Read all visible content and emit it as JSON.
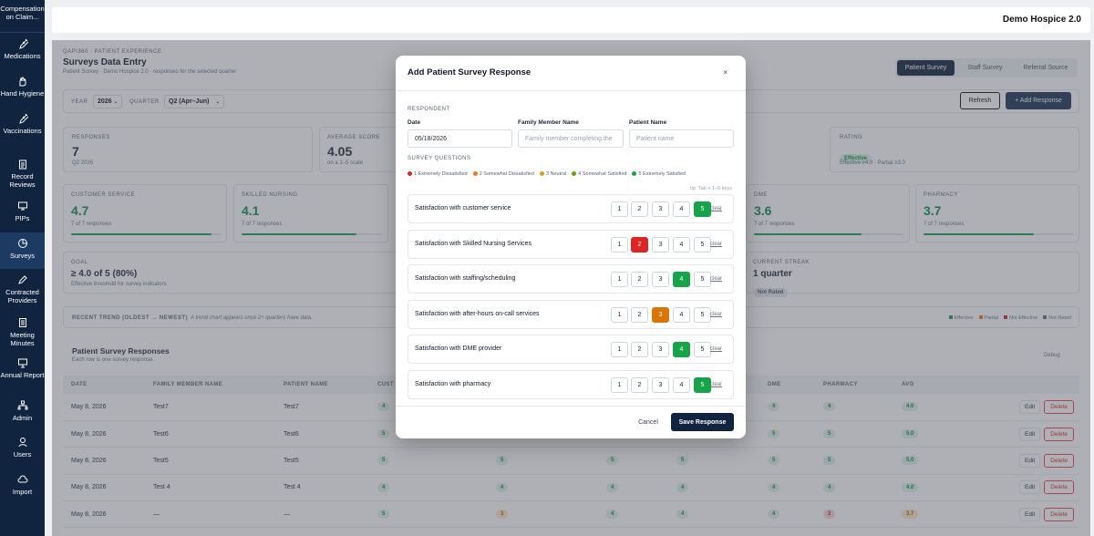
{
  "sidebar": {
    "top_label": "Compensation on Claim...",
    "items": [
      {
        "label": "Medications",
        "icon": "syringe-icon"
      },
      {
        "label": "Hand Hygiene",
        "icon": "hand-icon"
      },
      {
        "label": "Vaccinations",
        "icon": "syringe-icon"
      },
      {
        "label": "Record Reviews",
        "icon": "clipboard-icon"
      },
      {
        "label": "PIPs",
        "icon": "monitor-icon"
      },
      {
        "label": "Surveys",
        "icon": "pie-icon"
      },
      {
        "label": "Contracted Providers",
        "icon": "pen-icon"
      },
      {
        "label": "Meeting Minutes",
        "icon": "notes-icon"
      },
      {
        "label": "Annual Report",
        "icon": "presentation-icon"
      },
      {
        "label": "Admin",
        "icon": "org-icon"
      },
      {
        "label": "Users",
        "icon": "user-icon"
      },
      {
        "label": "Import",
        "icon": "cloud-icon"
      }
    ]
  },
  "header": {
    "org": "Demo Hospice 2.0"
  },
  "page": {
    "eyebrow": "QAPI360 · PATIENT EXPERIENCE",
    "title": "Surveys Data Entry",
    "subtitle": "Patient Survey · Demo Hospice 2.0 · responses for the selected quarter",
    "tabs": [
      "Patient Survey",
      "Staff Survey",
      "Referral Source"
    ],
    "year_label": "YEAR",
    "year_value": "2026",
    "quarter_label": "QUARTER",
    "quarter_value": "Q2 (Apr–Jun)",
    "refresh": "Refresh",
    "add_response": "+ Add Response"
  },
  "stats": {
    "responses": {
      "label": "RESPONSES",
      "value": "7",
      "sub": "Q2 2026"
    },
    "average": {
      "label": "AVERAGE SCORE",
      "value": "4.05",
      "sub": "on a 1–5 scale"
    },
    "rating": {
      "label": "RATING",
      "badge": "Effective",
      "sub": "Effective ≥4.0 · Partial ≥3.0"
    }
  },
  "categories": [
    {
      "label": "CUSTOMER SERVICE",
      "value": "4.7",
      "sub": "7 of 7 responses",
      "fill": 0.94
    },
    {
      "label": "SKILLED NURSING",
      "value": "4.1",
      "sub": "7 of 7 responses",
      "fill": 0.82
    },
    {
      "label": "DME",
      "value": "3.6",
      "sub": "7 of 7 responses",
      "fill": 0.72
    },
    {
      "label": "PHARMACY",
      "value": "3.7",
      "sub": "7 of 7 responses",
      "fill": 0.74
    }
  ],
  "goal": {
    "label": "GOAL",
    "value": "≥ 4.0 of 5 (80%)",
    "sub": "Effective threshold for survey indicators"
  },
  "streak": {
    "label": "CURRENT STREAK",
    "value": "1 quarter",
    "badge": "Not Rated"
  },
  "trend": {
    "label": "RECENT TREND (OLDEST → NEWEST)",
    "note": "A trend chart appears once 2+ quarters have data.",
    "legend": [
      {
        "label": "Effective",
        "color": "#16a34a"
      },
      {
        "label": "Partial",
        "color": "#ea7a1a"
      },
      {
        "label": "Not Effective",
        "color": "#dc2626"
      },
      {
        "label": "Not Rated",
        "color": "#64748b"
      }
    ]
  },
  "responses_section": {
    "title": "Patient Survey Responses",
    "sub": "Each row is one survey response.",
    "debug": "Debug",
    "columns": [
      "DATE",
      "FAMILY MEMBER NAME",
      "PATIENT NAME",
      "CUST",
      "",
      "",
      "",
      "DME",
      "PHARMACY",
      "AVG",
      ""
    ],
    "rows": [
      {
        "date": "May 8, 2026",
        "family": "Test7",
        "patient": "Test7",
        "c1": "4",
        "c2": "",
        "c3": "",
        "c4": "",
        "dme": "4",
        "pharm": "4",
        "avg": "4.0"
      },
      {
        "date": "May 8, 2026",
        "family": "Test6",
        "patient": "Test6",
        "c1": "5",
        "c2": "",
        "c3": "",
        "c4": "",
        "dme": "5",
        "pharm": "5",
        "avg": "5.0"
      },
      {
        "date": "May 8, 2026",
        "family": "Test5",
        "patient": "Test5",
        "c1": "5",
        "c2": "5",
        "c3": "5",
        "c4": "5",
        "dme": "5",
        "pharm": "5",
        "avg": "5.0"
      },
      {
        "date": "May 8, 2026",
        "family": "Test 4",
        "patient": "Test 4",
        "c1": "4",
        "c2": "4",
        "c3": "4",
        "c4": "4",
        "dme": "4",
        "pharm": "4",
        "avg": "4.0"
      },
      {
        "date": "May 8, 2026",
        "family": "—",
        "patient": "—",
        "c1": "5",
        "c2": "3",
        "c3": "4",
        "c4": "4",
        "dme": "4",
        "pharm": "2",
        "avg": "3.7"
      }
    ],
    "edit": "Edit",
    "delete": "Delete"
  },
  "modal": {
    "title": "Add Patient Survey Response",
    "close": "×",
    "respondent": "RESPONDENT",
    "date_label": "Date",
    "date_value": "05/18/2026",
    "family_label": "Family Member Name",
    "family_placeholder": "Family member completing the",
    "patient_label": "Patient Name",
    "patient_placeholder": "Patient name",
    "questions_label": "SURVEY QUESTIONS",
    "legend": [
      {
        "text": "1 Extremely Dissatisfied",
        "color": "#dc2626"
      },
      {
        "text": "2 Somewhat Dissatisfied",
        "color": "#ea7a1a"
      },
      {
        "text": "3 Neutral",
        "color": "#d4a017"
      },
      {
        "text": "4 Somewhat Satisfied",
        "color": "#65a30d"
      },
      {
        "text": "5 Extremely Satisfied",
        "color": "#16a34a"
      }
    ],
    "tip": "tip: Tab + 1–5 keys",
    "questions": [
      {
        "label": "Satisfaction with customer service",
        "selected": 5
      },
      {
        "label": "Satisfaction with Skilled Nursing Services",
        "selected": 2
      },
      {
        "label": "Satisfaction with staffing/scheduling",
        "selected": 4
      },
      {
        "label": "Satisfaction with after-hours on-call services",
        "selected": 3
      },
      {
        "label": "Satisfaction with DME provider",
        "selected": 4
      },
      {
        "label": "Satisfaction with pharmacy",
        "selected": 5
      }
    ],
    "options": [
      "1",
      "2",
      "3",
      "4",
      "5"
    ],
    "clear": "clear",
    "cancel": "Cancel",
    "save": "Save Response"
  }
}
